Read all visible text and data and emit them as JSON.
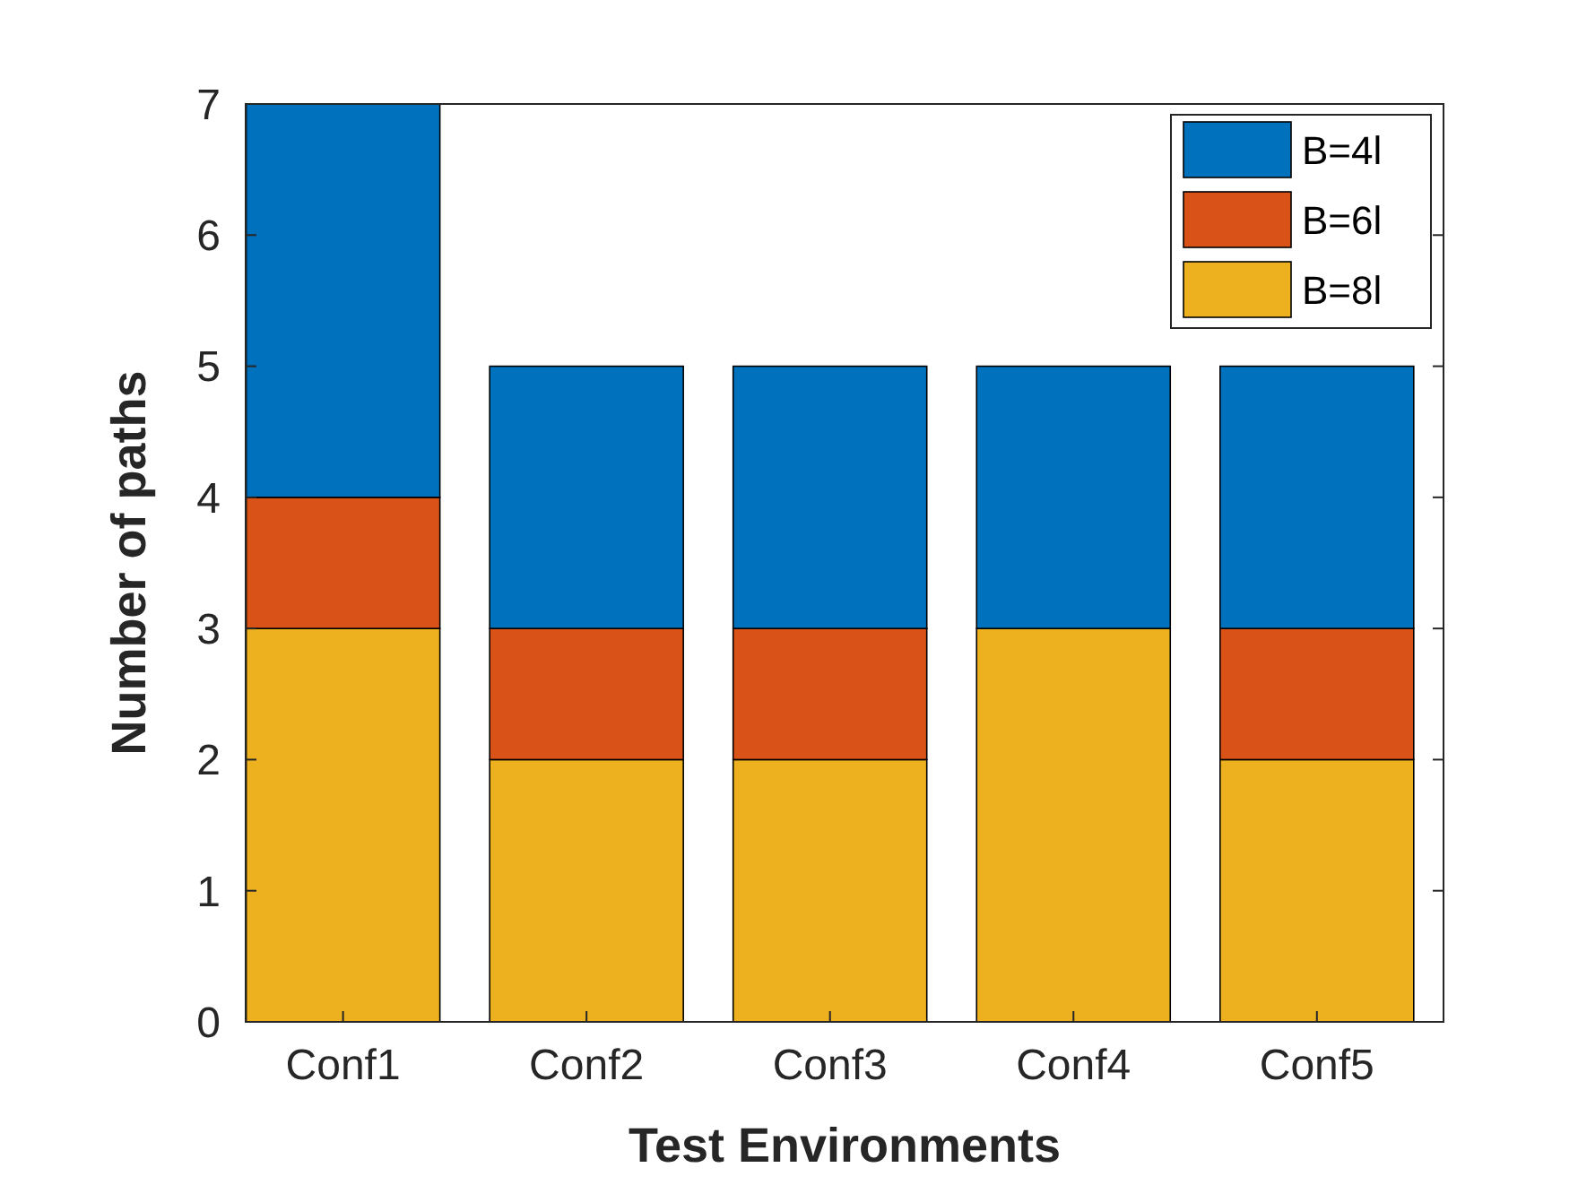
{
  "chart_data": {
    "type": "bar",
    "stacked": true,
    "xlabel": "Test Environments",
    "ylabel": "Number of paths",
    "categories": [
      "Conf1",
      "Conf2",
      "Conf3",
      "Conf4",
      "Conf5"
    ],
    "series": [
      {
        "name": "B=8l",
        "color": "#edb120",
        "values": [
          3,
          2,
          2,
          3,
          2
        ]
      },
      {
        "name": "B=6l",
        "color": "#d95319",
        "values": [
          1,
          1,
          1,
          0,
          1
        ]
      },
      {
        "name": "B=4l",
        "color": "#0072bd",
        "values": [
          3,
          2,
          2,
          2,
          2
        ]
      }
    ],
    "ylim": [
      0,
      7
    ],
    "yticks": [
      0,
      1,
      2,
      3,
      4,
      5,
      6,
      7
    ],
    "grid": false,
    "legend": "top right"
  }
}
